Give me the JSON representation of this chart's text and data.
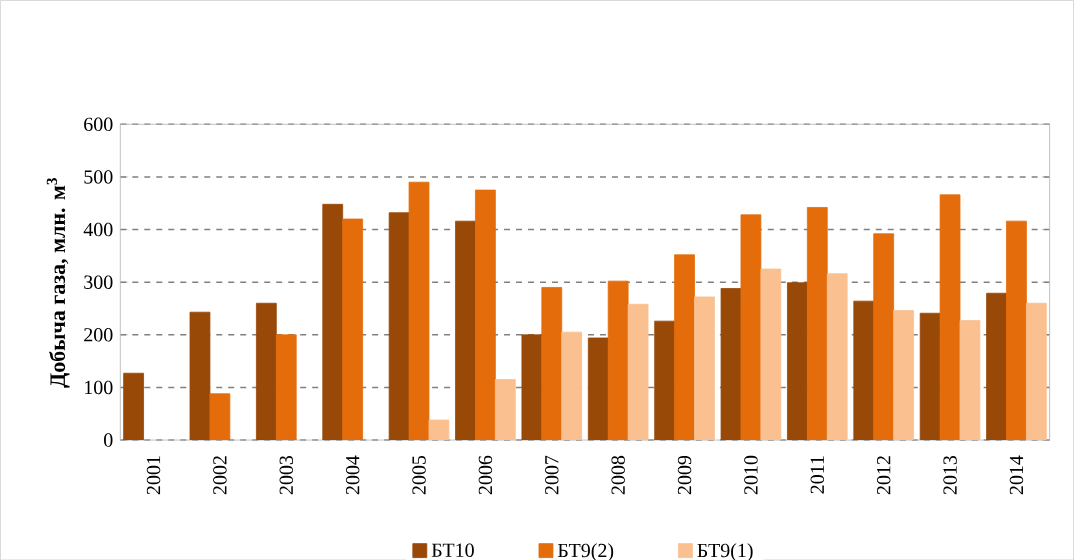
{
  "chart_data": {
    "type": "bar",
    "ylabel": "Добыча газа, млн. м$^{3}$",
    "categories": [
      "2001",
      "2002",
      "2003",
      "2004",
      "2005",
      "2006",
      "2007",
      "2008",
      "2009",
      "2010",
      "2011",
      "2012",
      "2013",
      "2014"
    ],
    "series": [
      {
        "name": "БТ10",
        "color": "#984807",
        "values": [
          127,
          243,
          260,
          448,
          432,
          416,
          200,
          194,
          226,
          288,
          299,
          264,
          241,
          279
        ]
      },
      {
        "name": "БТ9(2)",
        "color": "#e46c0a",
        "values": [
          null,
          88,
          200,
          420,
          490,
          475,
          290,
          302,
          352,
          428,
          442,
          392,
          466,
          416
        ]
      },
      {
        "name": "БТ9(1)",
        "color": "#fac090",
        "values": [
          null,
          null,
          null,
          null,
          38,
          115,
          205,
          258,
          272,
          325,
          316,
          246,
          227,
          260
        ]
      }
    ],
    "ylim": [
      0,
      600
    ],
    "yticks": [
      0,
      100,
      200,
      300,
      400,
      500,
      600
    ],
    "grid": "y",
    "legend": "bottom"
  }
}
